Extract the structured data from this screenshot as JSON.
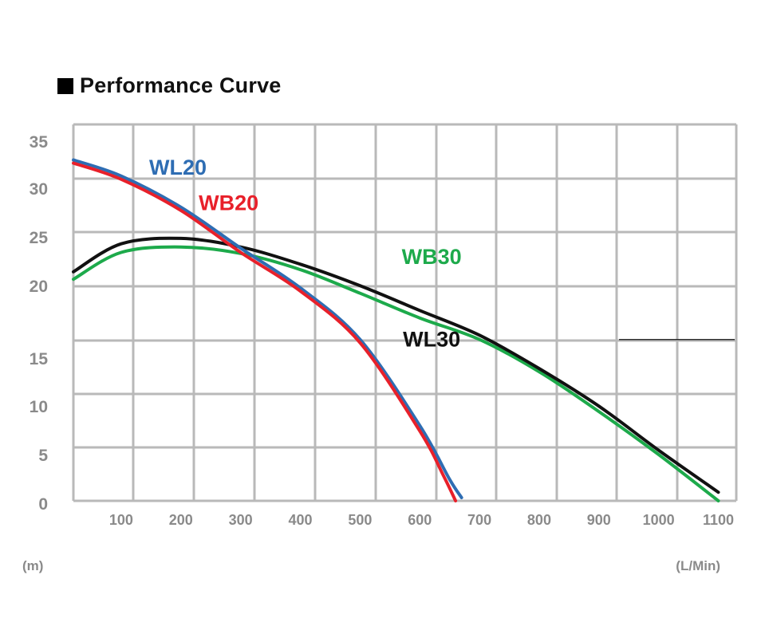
{
  "chart_data": {
    "type": "line",
    "title": "Performance Curve",
    "xlabel": "(L/Min)",
    "ylabel": "(m)",
    "xlim": [
      20,
      1130
    ],
    "ylim": [
      0,
      35
    ],
    "x_ticks": [
      100,
      200,
      300,
      400,
      500,
      600,
      700,
      800,
      900,
      1000,
      1100
    ],
    "y_ticks": [
      0,
      5,
      10,
      15,
      20,
      25,
      30,
      35
    ],
    "grid": true,
    "series": [
      {
        "name": "WL20",
        "color": "#2e6db3",
        "x": [
          20,
          100,
          200,
          300,
          400,
          500,
          600,
          650,
          670
        ],
        "y": [
          31.7,
          30.2,
          27.3,
          23.5,
          19.8,
          15.0,
          7.0,
          2.0,
          0.3
        ]
      },
      {
        "name": "WB20",
        "color": "#e8202a",
        "x": [
          20,
          100,
          200,
          300,
          400,
          500,
          600,
          640,
          660
        ],
        "y": [
          31.4,
          29.9,
          27.0,
          23.1,
          19.5,
          14.7,
          6.5,
          2.3,
          0.0
        ]
      },
      {
        "name": "WB30",
        "color": "#1daa4b",
        "x": [
          20,
          100,
          200,
          300,
          400,
          500,
          600,
          700,
          800,
          900,
          1000,
          1100
        ],
        "y": [
          20.6,
          23.1,
          23.6,
          23.0,
          21.5,
          19.3,
          17.0,
          15.0,
          12.0,
          8.3,
          4.3,
          0.0
        ]
      },
      {
        "name": "WL30",
        "color": "#111111",
        "x": [
          20,
          100,
          200,
          300,
          400,
          500,
          600,
          700,
          800,
          900,
          1000,
          1100
        ],
        "y": [
          21.3,
          23.9,
          24.4,
          23.6,
          22.0,
          20.0,
          17.7,
          15.4,
          12.3,
          8.8,
          4.7,
          0.8
        ]
      }
    ],
    "labels": [
      {
        "text": "WL20",
        "series": "WL20",
        "x": 195,
        "y": 31.0
      },
      {
        "text": "WB20",
        "series": "WB20",
        "x": 280,
        "y": 27.7
      },
      {
        "text": "WB30",
        "series": "WB30",
        "x": 620,
        "y": 22.7
      },
      {
        "text": "WL30",
        "series": "WL30",
        "x": 620,
        "y": 15.0
      }
    ]
  }
}
